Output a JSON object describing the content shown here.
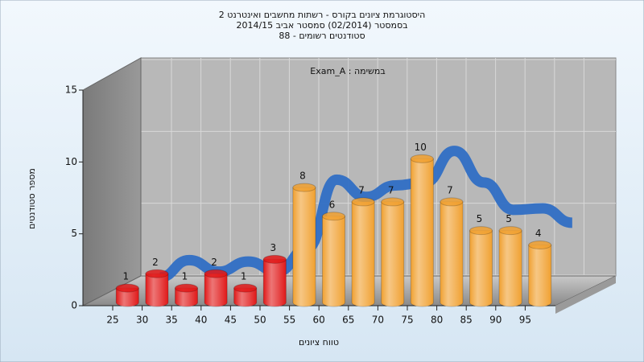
{
  "chart_data": {
    "type": "bar",
    "title": [
      "היסטוגרמת ציונים בקורס - רשתות מחשבים ואינטרנט 2",
      "בסמסטר (02/2014) סמסטר אביב 2014/15",
      "סטודנטים רשומים - 88"
    ],
    "subtitle": "במשימה : Exam_A",
    "xlabel": "טווח ציונים",
    "ylabel": "מספר סטודנטים",
    "categories": [
      "25",
      "30",
      "35",
      "40",
      "45",
      "50",
      "55",
      "60",
      "65",
      "70",
      "75",
      "80",
      "85",
      "90",
      "95"
    ],
    "values": [
      1,
      2,
      1,
      2,
      1,
      3,
      8,
      6,
      7,
      7,
      10,
      7,
      5,
      5,
      4
    ],
    "colors": [
      "#e01818",
      "#e01818",
      "#e01818",
      "#e01818",
      "#e01818",
      "#e01818",
      "#f0a030",
      "#f0a030",
      "#f0a030",
      "#f0a030",
      "#f0a030",
      "#f0a030",
      "#f0a030",
      "#f0a030",
      "#f0a030"
    ],
    "trend": {
      "color": "#2f6ec4",
      "values": [
        0.8,
        2.0,
        1.2,
        1.9,
        1.2,
        2.8,
        7.6,
        6.4,
        7.2,
        7.4,
        9.6,
        7.4,
        5.5,
        5.6,
        4.6
      ]
    },
    "ylim": [
      0,
      15
    ],
    "yticks": [
      0,
      5,
      10,
      15
    ],
    "grid": true
  }
}
